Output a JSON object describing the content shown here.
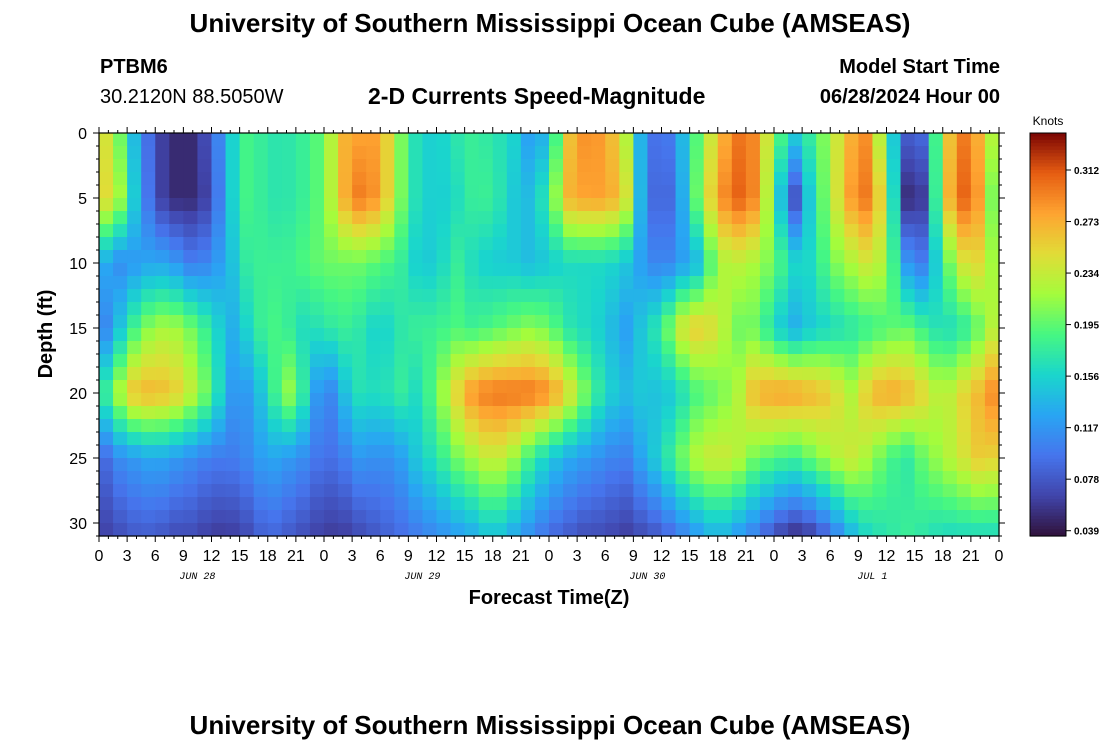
{
  "header": {
    "title_top": "University of Southern Mississippi Ocean Cube (AMSEAS)",
    "title_bottom": "University of Southern Mississippi Ocean Cube (AMSEAS)",
    "station": "PTBM6",
    "location": "30.2120N  88.5050W",
    "plot_title": "2-D Currents Speed-Magnitude",
    "model_start_label": "Model Start Time",
    "model_start_value": "06/28/2024 Hour 00"
  },
  "chart_data": {
    "type": "heatmap",
    "title": "2-D Currents Speed-Magnitude",
    "xlabel": "Forecast Time(Z)",
    "ylabel": "Depth (ft)",
    "x_range_hours": [
      0,
      96
    ],
    "y_range_ft": [
      0,
      31
    ],
    "x_tick_labels": [
      "0",
      "3",
      "6",
      "9",
      "12",
      "15",
      "18",
      "21",
      "0",
      "3",
      "6",
      "9",
      "12",
      "15",
      "18",
      "21",
      "0",
      "3",
      "6",
      "9",
      "12",
      "15",
      "18",
      "21",
      "0",
      "3",
      "6",
      "9",
      "12",
      "15",
      "18",
      "21",
      "0"
    ],
    "y_tick_labels": [
      "0",
      "5",
      "10",
      "15",
      "20",
      "25",
      "30"
    ],
    "y_tick_values": [
      0,
      5,
      10,
      15,
      20,
      25,
      30
    ],
    "day_labels": [
      "JUN 28",
      "JUN 29",
      "JUN 30",
      "JUL 1"
    ],
    "colorbar": {
      "unit": "Knots",
      "min": 0.035,
      "max": 0.34,
      "tick_values": [
        0.312,
        0.273,
        0.234,
        0.195,
        0.156,
        0.117,
        0.078,
        0.039
      ],
      "tick_labels": [
        "0.312",
        "0.273",
        "0.234",
        "0.195",
        "0.156",
        "0.117",
        "0.078",
        "0.039"
      ]
    },
    "grid_hours": [
      0,
      2,
      4,
      6,
      8,
      10,
      12,
      14,
      16,
      18,
      20,
      22,
      24,
      26,
      28,
      30,
      32,
      34,
      36,
      38,
      40,
      42,
      44,
      46,
      48,
      50,
      52,
      54,
      56,
      58,
      60,
      62,
      64,
      66,
      68,
      70,
      72,
      74,
      76,
      78,
      80,
      82,
      84,
      86,
      88,
      90,
      92,
      94,
      96
    ],
    "grid_depths_ft": [
      0,
      5,
      10,
      15,
      20,
      25,
      31
    ],
    "speed_knots": [
      [
        0.26,
        0.21,
        0.13,
        0.07,
        0.05,
        0.05,
        0.08,
        0.15,
        0.19,
        0.17,
        0.17,
        0.18,
        0.2,
        0.27,
        0.28,
        0.28,
        0.21,
        0.16,
        0.15,
        0.17,
        0.18,
        0.17,
        0.16,
        0.12,
        0.14,
        0.26,
        0.29,
        0.28,
        0.24,
        0.12,
        0.08,
        0.13,
        0.2,
        0.26,
        0.3,
        0.29,
        0.21,
        0.15,
        0.18,
        0.22,
        0.27,
        0.29,
        0.19,
        0.08,
        0.09,
        0.24,
        0.3,
        0.27,
        0.2
      ],
      [
        0.26,
        0.23,
        0.14,
        0.07,
        0.05,
        0.05,
        0.07,
        0.15,
        0.19,
        0.17,
        0.17,
        0.18,
        0.2,
        0.27,
        0.3,
        0.28,
        0.21,
        0.16,
        0.15,
        0.16,
        0.18,
        0.18,
        0.15,
        0.14,
        0.18,
        0.27,
        0.28,
        0.28,
        0.26,
        0.12,
        0.07,
        0.12,
        0.21,
        0.28,
        0.31,
        0.29,
        0.19,
        0.06,
        0.16,
        0.22,
        0.28,
        0.3,
        0.23,
        0.05,
        0.06,
        0.25,
        0.31,
        0.28,
        0.16
      ],
      [
        0.14,
        0.11,
        0.12,
        0.13,
        0.12,
        0.1,
        0.11,
        0.14,
        0.18,
        0.18,
        0.18,
        0.19,
        0.2,
        0.2,
        0.2,
        0.19,
        0.18,
        0.15,
        0.15,
        0.18,
        0.16,
        0.15,
        0.15,
        0.14,
        0.15,
        0.16,
        0.16,
        0.16,
        0.15,
        0.12,
        0.1,
        0.12,
        0.14,
        0.22,
        0.23,
        0.22,
        0.2,
        0.16,
        0.16,
        0.2,
        0.22,
        0.24,
        0.22,
        0.12,
        0.1,
        0.18,
        0.24,
        0.25,
        0.2
      ],
      [
        0.09,
        0.14,
        0.19,
        0.22,
        0.22,
        0.2,
        0.17,
        0.13,
        0.16,
        0.19,
        0.18,
        0.16,
        0.17,
        0.18,
        0.17,
        0.15,
        0.17,
        0.18,
        0.18,
        0.19,
        0.18,
        0.19,
        0.2,
        0.21,
        0.2,
        0.17,
        0.16,
        0.15,
        0.12,
        0.15,
        0.18,
        0.24,
        0.26,
        0.24,
        0.2,
        0.2,
        0.16,
        0.13,
        0.15,
        0.16,
        0.17,
        0.18,
        0.19,
        0.2,
        0.18,
        0.16,
        0.17,
        0.2,
        0.24
      ],
      [
        0.16,
        0.22,
        0.27,
        0.27,
        0.26,
        0.23,
        0.19,
        0.12,
        0.12,
        0.16,
        0.22,
        0.17,
        0.09,
        0.14,
        0.17,
        0.16,
        0.18,
        0.16,
        0.2,
        0.25,
        0.29,
        0.3,
        0.3,
        0.3,
        0.29,
        0.25,
        0.2,
        0.16,
        0.14,
        0.15,
        0.14,
        0.16,
        0.19,
        0.2,
        0.22,
        0.27,
        0.28,
        0.28,
        0.27,
        0.26,
        0.22,
        0.26,
        0.28,
        0.27,
        0.25,
        0.22,
        0.25,
        0.27,
        0.3
      ],
      [
        0.08,
        0.11,
        0.12,
        0.13,
        0.12,
        0.11,
        0.1,
        0.1,
        0.11,
        0.13,
        0.12,
        0.11,
        0.09,
        0.1,
        0.12,
        0.11,
        0.12,
        0.15,
        0.17,
        0.2,
        0.22,
        0.24,
        0.22,
        0.18,
        0.15,
        0.13,
        0.12,
        0.11,
        0.1,
        0.13,
        0.16,
        0.2,
        0.23,
        0.24,
        0.23,
        0.2,
        0.19,
        0.18,
        0.2,
        0.22,
        0.24,
        0.22,
        0.19,
        0.17,
        0.2,
        0.22,
        0.24,
        0.26,
        0.25
      ],
      [
        0.06,
        0.07,
        0.08,
        0.08,
        0.07,
        0.07,
        0.06,
        0.06,
        0.07,
        0.09,
        0.08,
        0.07,
        0.06,
        0.06,
        0.07,
        0.08,
        0.09,
        0.1,
        0.11,
        0.12,
        0.13,
        0.15,
        0.13,
        0.11,
        0.09,
        0.08,
        0.07,
        0.07,
        0.06,
        0.07,
        0.08,
        0.1,
        0.12,
        0.14,
        0.12,
        0.1,
        0.07,
        0.05,
        0.06,
        0.09,
        0.13,
        0.16,
        0.17,
        0.18,
        0.17,
        0.16,
        0.16,
        0.16,
        0.16
      ]
    ]
  }
}
